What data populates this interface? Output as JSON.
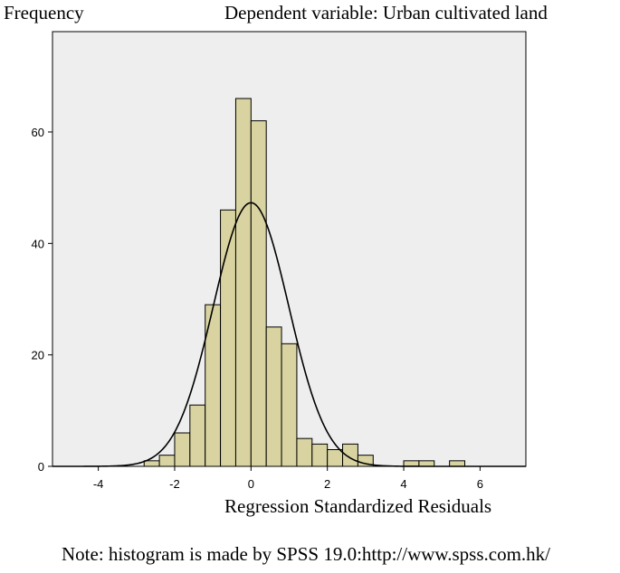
{
  "chart_data": {
    "type": "bar",
    "title": "Dependent variable: Urban cultivated land",
    "xlabel": "Regression Standardized Residuals",
    "ylabel": "Frequency",
    "note": "Note: histogram is made by SPSS 19.0:http://www.spss.com.hk/",
    "xlim": [
      -5.2,
      7.2
    ],
    "ylim": [
      0,
      78
    ],
    "xticks": [
      -4,
      -2,
      0,
      2,
      4,
      6
    ],
    "yticks": [
      0,
      20,
      40,
      60
    ],
    "bin_width": 0.4,
    "bins": [
      {
        "x0": -2.8,
        "count": 1
      },
      {
        "x0": -2.4,
        "count": 2
      },
      {
        "x0": -2.0,
        "count": 6
      },
      {
        "x0": -1.6,
        "count": 11
      },
      {
        "x0": -1.2,
        "count": 29
      },
      {
        "x0": -0.8,
        "count": 46
      },
      {
        "x0": -0.4,
        "count": 66
      },
      {
        "x0": 0.0,
        "count": 62
      },
      {
        "x0": 0.4,
        "count": 25
      },
      {
        "x0": 0.8,
        "count": 22
      },
      {
        "x0": 1.2,
        "count": 5
      },
      {
        "x0": 1.6,
        "count": 4
      },
      {
        "x0": 2.0,
        "count": 3
      },
      {
        "x0": 2.4,
        "count": 4
      },
      {
        "x0": 2.8,
        "count": 2
      },
      {
        "x0": 4.0,
        "count": 1
      },
      {
        "x0": 4.4,
        "count": 1
      },
      {
        "x0": 5.2,
        "count": 1
      }
    ],
    "normal_curve": {
      "mean": 0.0,
      "std": 0.99,
      "peak": 47.3
    },
    "colors": {
      "bar_fill": "#d8d3a0",
      "bar_stroke": "#000000",
      "plot_bg": "#eeeeee",
      "curve": "#000000"
    },
    "grid": false,
    "legend": "none"
  }
}
